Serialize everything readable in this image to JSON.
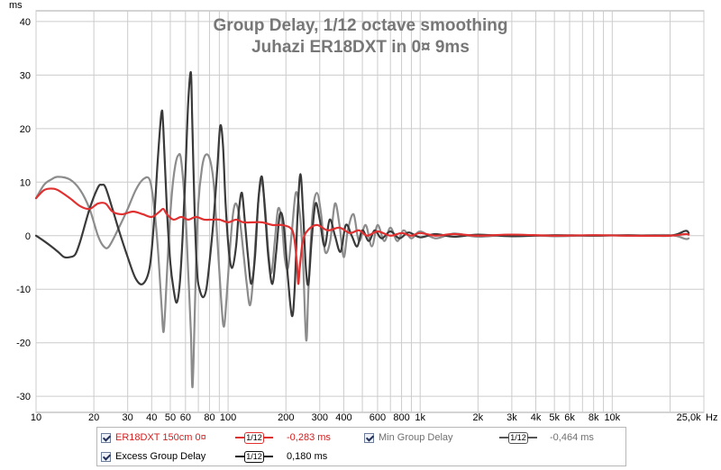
{
  "chart_data": {
    "type": "line",
    "title": "Group Delay, 1/12 octave smoothing",
    "subtitle": "Juhazi ER18DXT in 0¤ 9ms",
    "x_unit": "Hz",
    "y_unit": "ms",
    "x_scale": "log",
    "xlim": [
      10,
      30000
    ],
    "ylim": [
      -33,
      42
    ],
    "grid": true,
    "y_ticks": [
      -30,
      -20,
      -10,
      0,
      10,
      20,
      30,
      40
    ],
    "x_ticks": [
      {
        "v": 10,
        "label": "10"
      },
      {
        "v": 20,
        "label": "20"
      },
      {
        "v": 30,
        "label": "30"
      },
      {
        "v": 40,
        "label": "40"
      },
      {
        "v": 50,
        "label": "50"
      },
      {
        "v": 60,
        "label": "60"
      },
      {
        "v": 80,
        "label": "80"
      },
      {
        "v": 100,
        "label": "100"
      },
      {
        "v": 200,
        "label": "200"
      },
      {
        "v": 300,
        "label": "300"
      },
      {
        "v": 400,
        "label": "400"
      },
      {
        "v": 600,
        "label": "600"
      },
      {
        "v": 800,
        "label": "800"
      },
      {
        "v": 1000,
        "label": "1k"
      },
      {
        "v": 2000,
        "label": "2k"
      },
      {
        "v": 3000,
        "label": "3k"
      },
      {
        "v": 4000,
        "label": "4k"
      },
      {
        "v": 5000,
        "label": "5k"
      },
      {
        "v": 6000,
        "label": "6k"
      },
      {
        "v": 8000,
        "label": "8k"
      },
      {
        "v": 10000,
        "label": "10k"
      },
      {
        "v": 25000,
        "label": "25,0k"
      }
    ],
    "series": [
      {
        "name": "Min Group Delay",
        "color": "#8c8c8c",
        "value_label": "-0,464 ms",
        "points": [
          [
            10,
            7
          ],
          [
            11,
            9.5
          ],
          [
            12,
            10.5
          ],
          [
            13,
            11
          ],
          [
            15,
            10.5
          ],
          [
            17,
            8.5
          ],
          [
            19,
            5
          ],
          [
            21,
            0
          ],
          [
            22.5,
            -2
          ],
          [
            24,
            -2
          ],
          [
            27,
            1.5
          ],
          [
            30,
            5
          ],
          [
            33,
            8.5
          ],
          [
            36,
            10.5
          ],
          [
            39,
            10.5
          ],
          [
            41,
            6
          ],
          [
            43,
            -2
          ],
          [
            45,
            -13
          ],
          [
            46,
            -18
          ],
          [
            47,
            -14
          ],
          [
            49,
            -1
          ],
          [
            51,
            8
          ],
          [
            53,
            13
          ],
          [
            55,
            15
          ],
          [
            57,
            14
          ],
          [
            60,
            4
          ],
          [
            62,
            -7
          ],
          [
            64,
            -18
          ],
          [
            65,
            -28
          ],
          [
            66,
            -24
          ],
          [
            68,
            -6
          ],
          [
            70,
            6
          ],
          [
            73,
            12.5
          ],
          [
            76,
            15
          ],
          [
            80,
            14.5
          ],
          [
            84,
            10
          ],
          [
            88,
            -1
          ],
          [
            92,
            -12
          ],
          [
            95,
            -17
          ],
          [
            98,
            -12
          ],
          [
            102,
            -3
          ],
          [
            106,
            4
          ],
          [
            110,
            6
          ],
          [
            115,
            3
          ],
          [
            120,
            -3
          ],
          [
            125,
            -9
          ],
          [
            130,
            -13
          ],
          [
            135,
            -8
          ],
          [
            140,
            1
          ],
          [
            145,
            8
          ],
          [
            150,
            10
          ],
          [
            156,
            5
          ],
          [
            162,
            -3
          ],
          [
            168,
            -7
          ],
          [
            175,
            -1
          ],
          [
            182,
            5
          ],
          [
            190,
            3
          ],
          [
            197,
            -4
          ],
          [
            205,
            -6
          ],
          [
            215,
            1
          ],
          [
            225,
            8
          ],
          [
            235,
            5
          ],
          [
            245,
            -4
          ],
          [
            255,
            -19.5
          ],
          [
            262,
            -10
          ],
          [
            275,
            4
          ],
          [
            290,
            8
          ],
          [
            305,
            4
          ],
          [
            320,
            -3
          ],
          [
            340,
            -1
          ],
          [
            360,
            6
          ],
          [
            380,
            2
          ],
          [
            400,
            -4
          ],
          [
            420,
            1
          ],
          [
            450,
            4
          ],
          [
            480,
            -1
          ],
          [
            520,
            2
          ],
          [
            560,
            -2
          ],
          [
            600,
            2
          ],
          [
            650,
            -1
          ],
          [
            700,
            1.5
          ],
          [
            760,
            -1
          ],
          [
            820,
            1
          ],
          [
            900,
            -0.5
          ],
          [
            1000,
            0.8
          ],
          [
            1200,
            -0.5
          ],
          [
            1500,
            0.4
          ],
          [
            2000,
            -0.2
          ],
          [
            3000,
            0.2
          ],
          [
            5000,
            -0.1
          ],
          [
            8000,
            0.1
          ],
          [
            12000,
            0
          ],
          [
            20000,
            0.1
          ],
          [
            24000,
            -0.6
          ],
          [
            25000,
            -0.5
          ]
        ]
      },
      {
        "name": "Excess Group Delay",
        "color": "#3a3a3a",
        "value_label": "0,180 ms",
        "points": [
          [
            10,
            0
          ],
          [
            11,
            -1
          ],
          [
            12,
            -2
          ],
          [
            13,
            -3
          ],
          [
            14,
            -4
          ],
          [
            15,
            -4
          ],
          [
            16,
            -3.5
          ],
          [
            17,
            -1
          ],
          [
            19,
            5
          ],
          [
            21,
            9
          ],
          [
            22,
            9.5
          ],
          [
            23,
            9
          ],
          [
            25,
            5
          ],
          [
            27,
            1
          ],
          [
            30,
            -4
          ],
          [
            33,
            -8
          ],
          [
            36,
            -9
          ],
          [
            39,
            -6
          ],
          [
            41,
            2
          ],
          [
            43,
            14
          ],
          [
            45,
            23
          ],
          [
            46,
            20
          ],
          [
            48,
            5
          ],
          [
            50,
            -5
          ],
          [
            52,
            -10
          ],
          [
            54,
            -12.5
          ],
          [
            56,
            -9
          ],
          [
            58,
            0
          ],
          [
            60,
            12
          ],
          [
            62,
            25
          ],
          [
            64,
            30.5
          ],
          [
            65,
            22
          ],
          [
            67,
            4
          ],
          [
            69,
            -7
          ],
          [
            71,
            -10
          ],
          [
            74,
            -11.5
          ],
          [
            77,
            -10
          ],
          [
            80,
            -5
          ],
          [
            84,
            3
          ],
          [
            88,
            13
          ],
          [
            91,
            20.5
          ],
          [
            94,
            17
          ],
          [
            97,
            6
          ],
          [
            101,
            -3
          ],
          [
            105,
            -6
          ],
          [
            110,
            -2
          ],
          [
            114,
            5
          ],
          [
            118,
            8
          ],
          [
            122,
            3
          ],
          [
            127,
            -4
          ],
          [
            132,
            -9
          ],
          [
            138,
            -4
          ],
          [
            144,
            7
          ],
          [
            150,
            11
          ],
          [
            156,
            4
          ],
          [
            162,
            -4
          ],
          [
            170,
            -9
          ],
          [
            178,
            -3
          ],
          [
            186,
            4
          ],
          [
            195,
            2
          ],
          [
            205,
            -8
          ],
          [
            215,
            -15
          ],
          [
            222,
            -10
          ],
          [
            230,
            4
          ],
          [
            238,
            11.5
          ],
          [
            246,
            4
          ],
          [
            254,
            -6
          ],
          [
            262,
            -9
          ],
          [
            272,
            -1
          ],
          [
            285,
            6
          ],
          [
            300,
            3
          ],
          [
            318,
            -2
          ],
          [
            338,
            3
          ],
          [
            360,
            0
          ],
          [
            385,
            -3
          ],
          [
            410,
            2
          ],
          [
            440,
            0
          ],
          [
            470,
            -2
          ],
          [
            500,
            1
          ],
          [
            540,
            -1
          ],
          [
            580,
            1
          ],
          [
            630,
            -0.5
          ],
          [
            700,
            0.8
          ],
          [
            780,
            -0.5
          ],
          [
            870,
            0.6
          ],
          [
            1000,
            -0.3
          ],
          [
            1200,
            0.3
          ],
          [
            1500,
            -0.2
          ],
          [
            2000,
            0.2
          ],
          [
            3000,
            -0.1
          ],
          [
            5000,
            0.1
          ],
          [
            8000,
            0
          ],
          [
            12000,
            0.1
          ],
          [
            20000,
            0
          ],
          [
            24000,
            0.9
          ],
          [
            25000,
            0.5
          ]
        ]
      },
      {
        "name": "ER18DXT 150cm 0¤",
        "color": "#e03030",
        "value_label": "-0,283 ms",
        "points": [
          [
            10,
            7
          ],
          [
            11,
            8.5
          ],
          [
            12,
            8.8
          ],
          [
            13,
            8.5
          ],
          [
            15,
            7
          ],
          [
            17,
            5.5
          ],
          [
            19,
            5
          ],
          [
            21,
            6
          ],
          [
            23,
            6
          ],
          [
            25,
            4.5
          ],
          [
            28,
            4
          ],
          [
            32,
            4.5
          ],
          [
            36,
            4
          ],
          [
            40,
            3.5
          ],
          [
            44,
            4.5
          ],
          [
            46,
            5
          ],
          [
            48,
            4
          ],
          [
            52,
            3
          ],
          [
            57,
            3.5
          ],
          [
            62,
            3
          ],
          [
            68,
            3.5
          ],
          [
            75,
            3
          ],
          [
            82,
            3
          ],
          [
            90,
            3
          ],
          [
            100,
            2.5
          ],
          [
            110,
            3
          ],
          [
            120,
            2.5
          ],
          [
            135,
            2.5
          ],
          [
            150,
            2.5
          ],
          [
            170,
            2
          ],
          [
            190,
            2
          ],
          [
            210,
            1.5
          ],
          [
            220,
            0
          ],
          [
            228,
            -5
          ],
          [
            232,
            -9
          ],
          [
            236,
            -6
          ],
          [
            245,
            -1
          ],
          [
            260,
            1
          ],
          [
            290,
            2
          ],
          [
            330,
            1
          ],
          [
            380,
            1.5
          ],
          [
            430,
            0.5
          ],
          [
            480,
            1
          ],
          [
            530,
            0
          ],
          [
            600,
            0.8
          ],
          [
            700,
            0
          ],
          [
            800,
            0.5
          ],
          [
            900,
            0
          ],
          [
            1000,
            0.5
          ],
          [
            1200,
            0
          ],
          [
            1500,
            0.3
          ],
          [
            2000,
            0
          ],
          [
            3000,
            0.2
          ],
          [
            5000,
            0
          ],
          [
            8000,
            0.1
          ],
          [
            12000,
            0
          ],
          [
            20000,
            0
          ],
          [
            24000,
            0.3
          ],
          [
            25000,
            0.2
          ]
        ]
      }
    ]
  },
  "legend": {
    "items": [
      {
        "name": "ER18DXT 150cm 0¤",
        "smoothing": "1/12",
        "value": "-0,283 ms",
        "color": "#e03030"
      },
      {
        "name": "Min Group Delay",
        "smoothing": "1/12",
        "value": "-0,464 ms",
        "color": "#8c8c8c"
      },
      {
        "name": "Excess Group Delay",
        "smoothing": "1/12",
        "value": "0,180 ms",
        "color": "#1a1a1a"
      }
    ]
  }
}
